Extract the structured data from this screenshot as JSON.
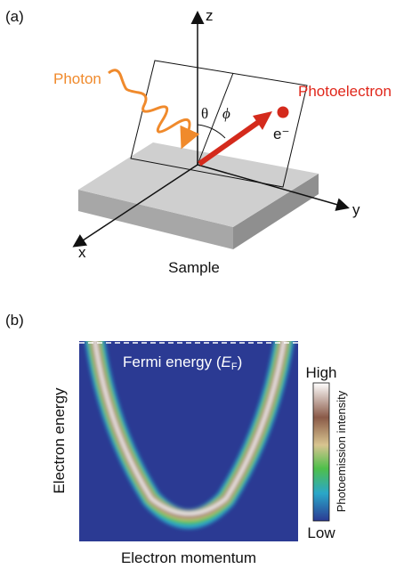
{
  "panel_a": {
    "label": "(a)",
    "axis_z": "z",
    "axis_y": "y",
    "axis_x": "x",
    "photon": "Photon",
    "photoelectron": "Photoelectron",
    "theta": "θ",
    "phi": "ϕ",
    "electron": "e⁻",
    "sample": "Sample"
  },
  "panel_b": {
    "label": "(b)",
    "fermi_prefix": "Fermi energy (",
    "fermi_symbol": "E",
    "fermi_subscript": "F",
    "fermi_suffix": ")",
    "y_axis_label": "Electron energy",
    "x_axis_label": "Electron momentum",
    "colorbar": {
      "high": "High",
      "low": "Low",
      "title": "Photoemission intensity"
    }
  }
}
